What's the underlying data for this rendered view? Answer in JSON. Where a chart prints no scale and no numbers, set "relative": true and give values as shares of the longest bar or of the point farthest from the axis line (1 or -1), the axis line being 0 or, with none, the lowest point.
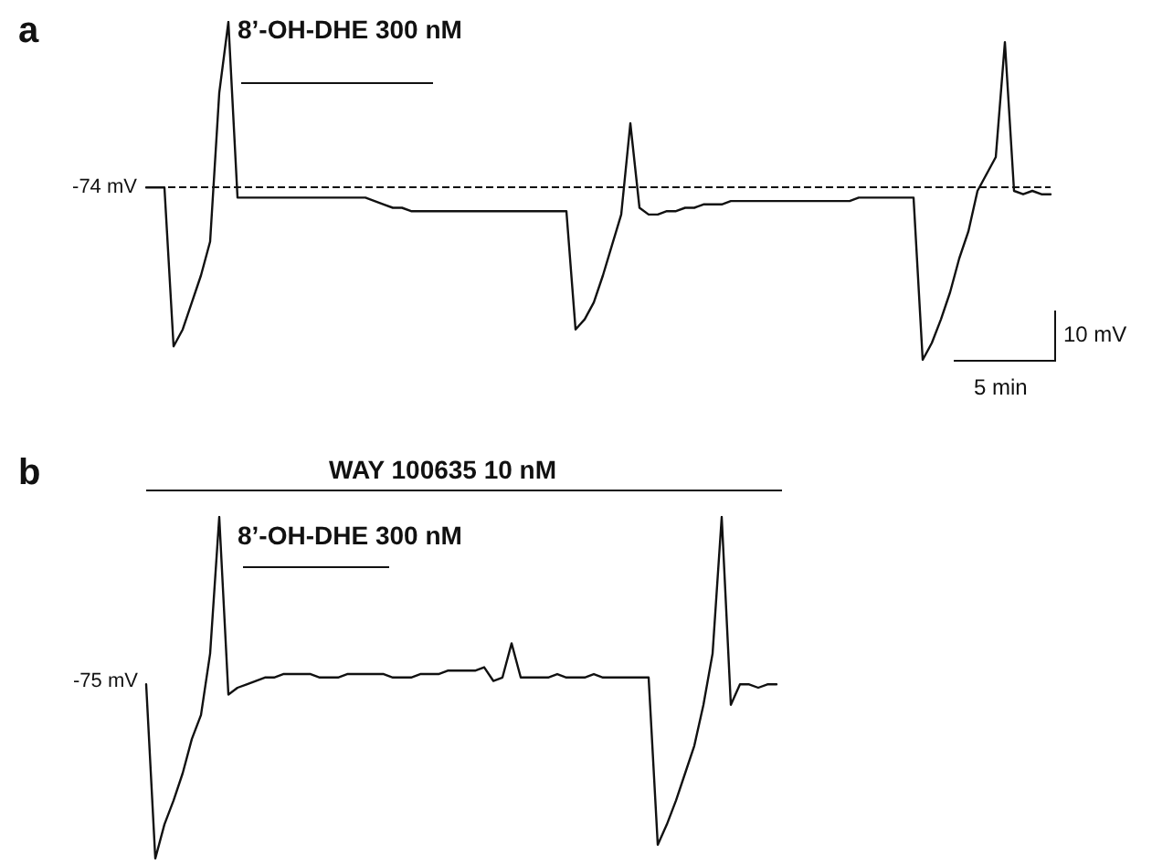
{
  "chart_data": [
    {
      "type": "line",
      "title": "a",
      "relative": true,
      "line_style": "solid",
      "categories": [
        null,
        null,
        null,
        null,
        null,
        null,
        null,
        null,
        null,
        null,
        null,
        null,
        null,
        null,
        null,
        null,
        null,
        null,
        null,
        null,
        null,
        null,
        null,
        null,
        null,
        null,
        null,
        null,
        null,
        null,
        null,
        null,
        null,
        null,
        null,
        null,
        null,
        null,
        null,
        null,
        null,
        null,
        null,
        null,
        null,
        null,
        null,
        null,
        null,
        null,
        null,
        null,
        null,
        null,
        null,
        null,
        null,
        null,
        null,
        null,
        null,
        null,
        null,
        null,
        null,
        null,
        null,
        null,
        null,
        null,
        null,
        null,
        null,
        null,
        null,
        null,
        null,
        null,
        null,
        null,
        null,
        null,
        null,
        null,
        null,
        null,
        null,
        null,
        null,
        null,
        null,
        null,
        null,
        null,
        null,
        null,
        null,
        null,
        null,
        null
      ],
      "series": [
        {
          "color": "#111111",
          "values": [
            0.51,
            0.51,
            0.51,
            0.04,
            0.09,
            0.17,
            0.25,
            0.35,
            0.79,
            1,
            0.48,
            0.48,
            0.48,
            0.48,
            0.48,
            0.48,
            0.48,
            0.48,
            0.48,
            0.48,
            0.48,
            0.48,
            0.48,
            0.48,
            0.48,
            0.47,
            0.46,
            0.45,
            0.45,
            0.44,
            0.44,
            0.44,
            0.44,
            0.44,
            0.44,
            0.44,
            0.44,
            0.44,
            0.44,
            0.44,
            0.44,
            0.44,
            0.44,
            0.44,
            0.44,
            0.44,
            0.44,
            0.09,
            0.12,
            0.17,
            0.25,
            0.34,
            0.43,
            0.7,
            0.45,
            0.43,
            0.43,
            0.44,
            0.44,
            0.45,
            0.45,
            0.46,
            0.46,
            0.46,
            0.47,
            0.47,
            0.47,
            0.47,
            0.47,
            0.47,
            0.47,
            0.47,
            0.47,
            0.47,
            0.47,
            0.47,
            0.47,
            0.47,
            0.48,
            0.48,
            0.48,
            0.48,
            0.48,
            0.48,
            0.48,
            0,
            0.05,
            0.12,
            0.2,
            0.3,
            0.38,
            0.5,
            0.55,
            0.6,
            0.94,
            0.5,
            0.49,
            0.5,
            0.49,
            0.49
          ]
        }
      ],
      "ref_lines": [
        {
          "axis": "y",
          "value": 0.51,
          "label": "-74 mV",
          "line_style": "dashed",
          "color": "#111111"
        }
      ],
      "annotations": [
        "8’-OH-DHE 300 nM",
        "10 mV",
        "5 min"
      ]
    },
    {
      "type": "line",
      "title": "b",
      "relative": true,
      "line_style": "solid",
      "categories": [
        null,
        null,
        null,
        null,
        null,
        null,
        null,
        null,
        null,
        null,
        null,
        null,
        null,
        null,
        null,
        null,
        null,
        null,
        null,
        null,
        null,
        null,
        null,
        null,
        null,
        null,
        null,
        null,
        null,
        null,
        null,
        null,
        null,
        null,
        null,
        null,
        null,
        null,
        null,
        null,
        null,
        null,
        null,
        null,
        null,
        null,
        null,
        null,
        null,
        null,
        null,
        null,
        null,
        null,
        null,
        null,
        null,
        null,
        null,
        null,
        null,
        null,
        null,
        null,
        null,
        null,
        null,
        null,
        null,
        null
      ],
      "series": [
        {
          "color": "#111111",
          "values": [
            0.51,
            0,
            0.1,
            0.17,
            0.25,
            0.35,
            0.42,
            0.6,
            1,
            0.48,
            0.5,
            0.51,
            0.52,
            0.53,
            0.53,
            0.54,
            0.54,
            0.54,
            0.54,
            0.53,
            0.53,
            0.53,
            0.54,
            0.54,
            0.54,
            0.54,
            0.54,
            0.53,
            0.53,
            0.53,
            0.54,
            0.54,
            0.54,
            0.55,
            0.55,
            0.55,
            0.55,
            0.56,
            0.52,
            0.53,
            0.63,
            0.53,
            0.53,
            0.53,
            0.53,
            0.54,
            0.53,
            0.53,
            0.53,
            0.54,
            0.53,
            0.53,
            0.53,
            0.53,
            0.53,
            0.53,
            0.04,
            0.1,
            0.17,
            0.25,
            0.33,
            0.45,
            0.6,
            1,
            0.45,
            0.51,
            0.51,
            0.5,
            0.51,
            0.51
          ]
        }
      ],
      "annotations": [
        "WAY 100635 10 nM",
        "8’-OH-DHE 300 nM",
        "-75 mV"
      ]
    }
  ]
}
